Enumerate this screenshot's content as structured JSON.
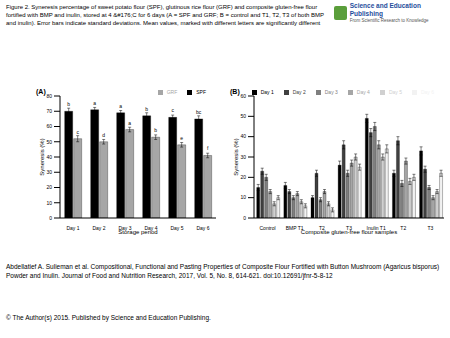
{
  "header": {
    "caption": "Figure 2. Syneresis percentage of sweet potato flour (SPF), glutinous rice flour (GRF) and composite gluten-free flour fortified with BMP and inulin, stored at 4 &#176;C for 6 days (A = SPF and GRF; B = control and T1, T2, T3 of both BMP and inulin). Error bars indicate standard deviations. Mean values, marked with different letters are significantly different",
    "logo_title": "Science and Education Publishing",
    "logo_subtitle": "From Scientific Research to Knowledge"
  },
  "chart_data": [
    {
      "type": "bar",
      "panel_label": "(A)",
      "ylabel": "Syneresis (%)",
      "xlabel": "Storage period",
      "categories": [
        "Day 1",
        "Day 2",
        "Day 3",
        "Day 4",
        "Day 5",
        "Day 6"
      ],
      "series": [
        {
          "name": "SPF",
          "color": "#000000",
          "values": [
            70,
            71,
            69,
            67,
            66,
            65
          ],
          "errors": [
            2,
            1.5,
            1.5,
            2,
            1.5,
            2
          ],
          "letters": [
            "b",
            "a",
            "a",
            "b",
            "c",
            "bc"
          ]
        },
        {
          "name": "GRF",
          "color": "#a6a6a6",
          "values": [
            52,
            50,
            58,
            53,
            48,
            41
          ],
          "errors": [
            2,
            1.5,
            1.5,
            1.5,
            1.5,
            1.5
          ],
          "letters": [
            "c",
            "d",
            "a",
            "b",
            "e",
            "f"
          ]
        }
      ],
      "ylim": [
        0,
        80
      ],
      "yticks": [
        0,
        10,
        20,
        30,
        40,
        50,
        60,
        70,
        80
      ],
      "legend": "top"
    },
    {
      "type": "bar",
      "panel_label": "(B)",
      "ylabel": "Syneresis (%)",
      "xlabel": "Composite gluten-free flour samples",
      "categories": [
        "Control",
        "BMP T1",
        "T2",
        "T3",
        "Inulin T1",
        "T2",
        "T3"
      ],
      "series": [
        {
          "name": "Day 1",
          "color": "#000000",
          "values": [
            15,
            16,
            10,
            26,
            49,
            22,
            33
          ],
          "errors": [
            1.5,
            1.5,
            1,
            2,
            2,
            1.5,
            2
          ]
        },
        {
          "name": "Day 2",
          "color": "#404040",
          "values": [
            23,
            13,
            22,
            36,
            42,
            38,
            24
          ],
          "errors": [
            1.5,
            1,
            1.5,
            2,
            2,
            2,
            1.5
          ]
        },
        {
          "name": "Day 3",
          "color": "#7f7f7f",
          "values": [
            20,
            10,
            9,
            22,
            45,
            17,
            15
          ],
          "errors": [
            1.5,
            1,
            1,
            1.5,
            2,
            1.5,
            1
          ]
        },
        {
          "name": "Day 4",
          "color": "#a6a6a6",
          "values": [
            13,
            12,
            13,
            27,
            36,
            28,
            10
          ],
          "errors": [
            1,
            1,
            1,
            1.5,
            2,
            1.5,
            1
          ]
        },
        {
          "name": "Day 5",
          "color": "#d0d0d0",
          "values": [
            7,
            8,
            7,
            30,
            30,
            18,
            13
          ],
          "errors": [
            1,
            1,
            1,
            1.5,
            1.5,
            1.5,
            1
          ]
        },
        {
          "name": "Day 6",
          "color": "#f2f2f2",
          "values": [
            10,
            6,
            4,
            25,
            34,
            20,
            22
          ],
          "errors": [
            1,
            1,
            1,
            1.5,
            2,
            1.5,
            1.5
          ]
        }
      ],
      "ylim": [
        0,
        60
      ],
      "yticks": [
        0,
        10,
        20,
        30,
        40,
        50,
        60
      ],
      "legend": "top"
    }
  ],
  "footer": {
    "citation": "Abdellatief A. Sulieman et al. Compositional, Functional and Pasting Properties of Composite Flour Fortified with Button Mushroom (Agaricus bisporus) Powder and Inulin. Journal of Food and Nutrition Research, 2017, Vol. 5, No. 8, 614-621. doi:10.12691/jfnr-5-8-12",
    "copyright": "© The Author(s) 2015. Published by Science and Education Publishing."
  }
}
